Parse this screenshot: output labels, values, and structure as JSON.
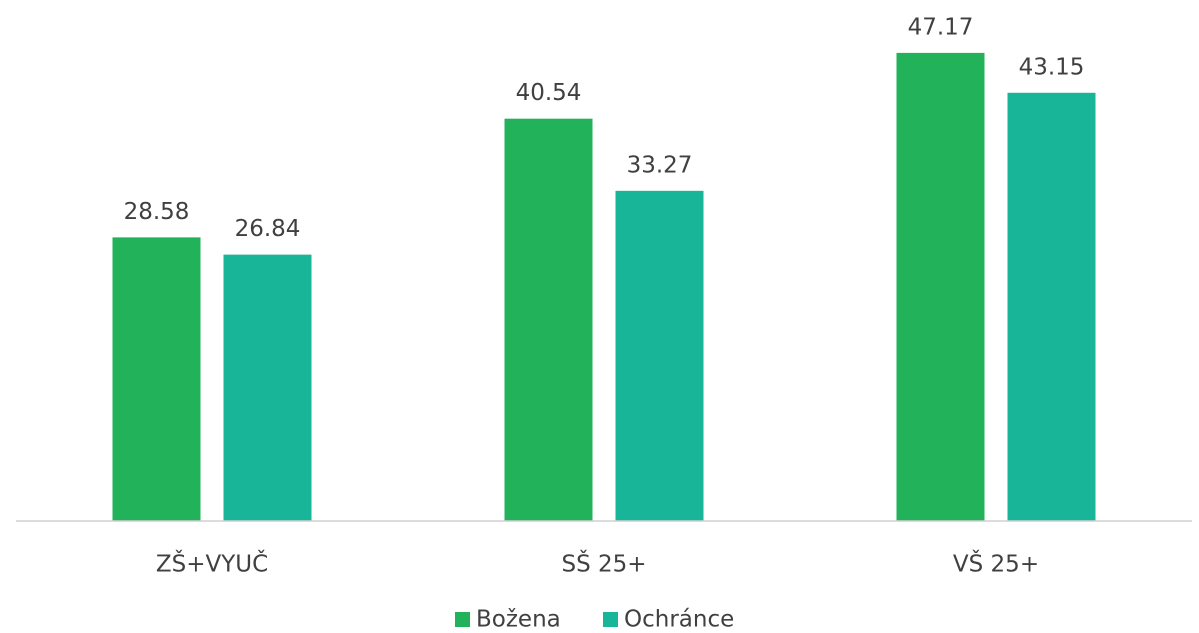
{
  "chart_data": {
    "type": "bar",
    "categories": [
      "ZŠ+VYUČ",
      "SŠ 25+",
      "VŠ 25+"
    ],
    "series": [
      {
        "name": "Božena",
        "color": "#22b35a",
        "values": [
          28.58,
          40.54,
          47.17
        ]
      },
      {
        "name": "Ochránce",
        "color": "#18b598",
        "values": [
          26.84,
          33.27,
          43.15
        ]
      }
    ],
    "ylim": [
      0,
      52.5
    ]
  }
}
